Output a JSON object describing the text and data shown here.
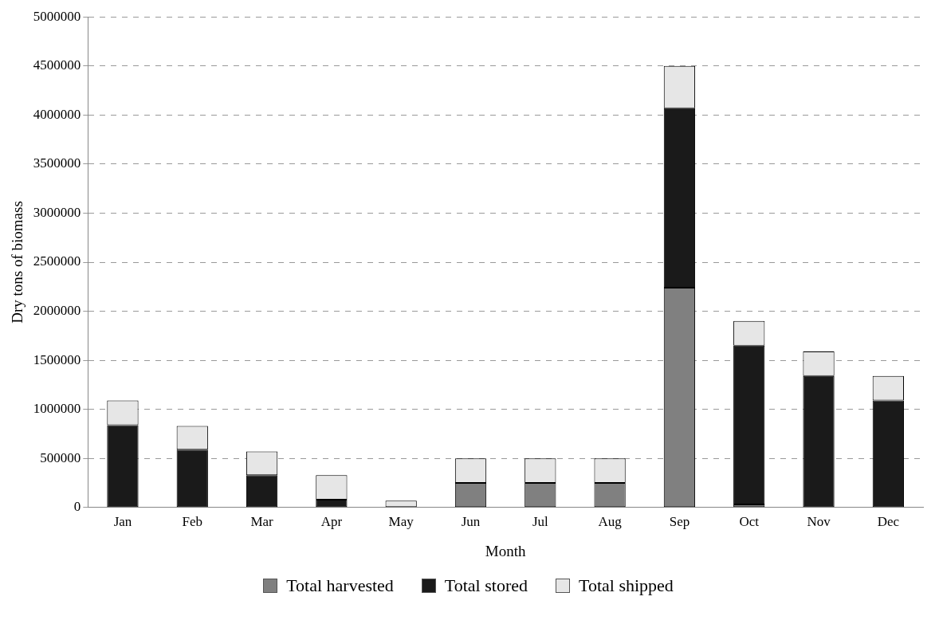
{
  "chart_data": {
    "type": "bar",
    "stacked": true,
    "xlabel": "Month",
    "ylabel": "Dry tons of biomass",
    "categories": [
      "Jan",
      "Feb",
      "Mar",
      "Apr",
      "May",
      "Jun",
      "Jul",
      "Aug",
      "Sep",
      "Oct",
      "Nov",
      "Dec"
    ],
    "series": [
      {
        "name": "Total harvested",
        "color": "#808080",
        "values": [
          0,
          0,
          0,
          0,
          0,
          250000,
          250000,
          250000,
          2240000,
          30000,
          0,
          0
        ]
      },
      {
        "name": "Total stored",
        "color": "#1a1a1a",
        "values": [
          840000,
          590000,
          330000,
          80000,
          0,
          0,
          0,
          0,
          1830000,
          1620000,
          1340000,
          1090000
        ]
      },
      {
        "name": "Total shipped",
        "color": "#e6e6e6",
        "values": [
          250000,
          240000,
          240000,
          250000,
          70000,
          250000,
          250000,
          250000,
          430000,
          250000,
          250000,
          250000
        ]
      }
    ],
    "ylim": [
      0,
      5000000
    ],
    "yticks": [
      0,
      500000,
      1000000,
      1500000,
      2000000,
      2500000,
      3000000,
      3500000,
      4000000,
      4500000,
      5000000
    ],
    "grid": "y",
    "legend": "bottom"
  }
}
